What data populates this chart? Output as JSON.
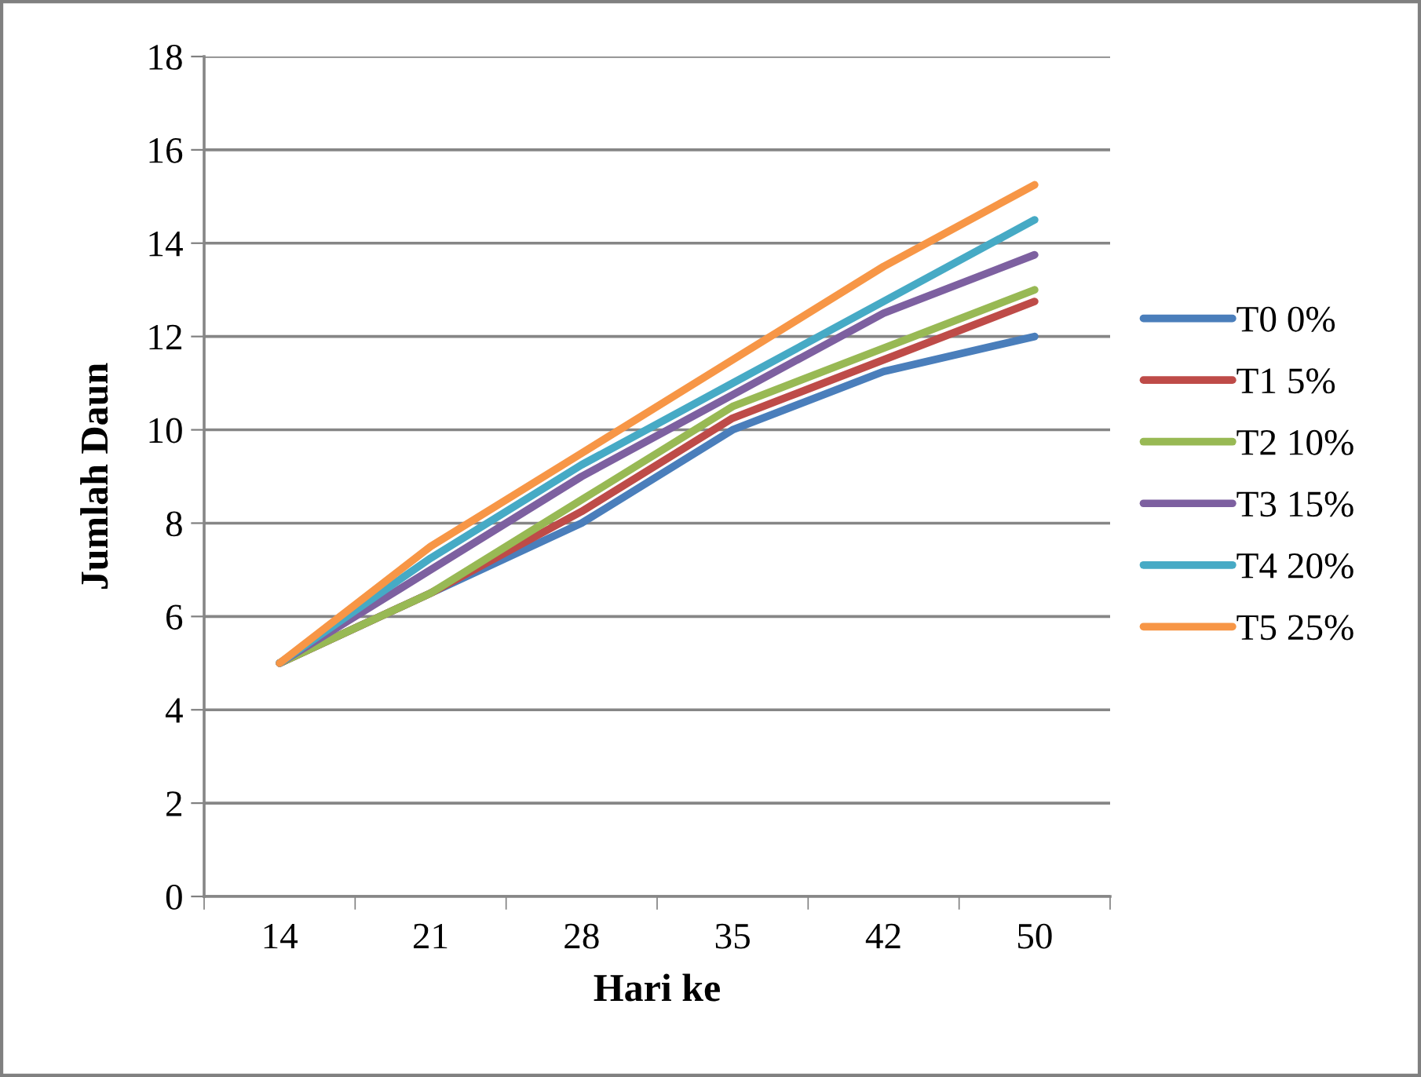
{
  "chart_data": {
    "type": "line",
    "xlabel": "Hari ke",
    "ylabel": "Jumlah Daun",
    "categories": [
      "14",
      "21",
      "28",
      "35",
      "42",
      "50"
    ],
    "series": [
      {
        "name": "T0 0%",
        "color": "#4a7ebb",
        "values": [
          5,
          6.5,
          8,
          10,
          11.25,
          12
        ]
      },
      {
        "name": "T1 5%",
        "color": "#be4b48",
        "values": [
          5,
          6.5,
          8.25,
          10.25,
          11.5,
          12.75
        ]
      },
      {
        "name": "T2 10%",
        "color": "#98b954",
        "values": [
          5,
          6.5,
          8.5,
          10.5,
          11.75,
          13
        ]
      },
      {
        "name": "T3 15%",
        "color": "#7d60a0",
        "values": [
          5,
          7,
          9,
          10.75,
          12.5,
          13.75
        ]
      },
      {
        "name": "T4 20%",
        "color": "#46aac5",
        "values": [
          5,
          7.25,
          9.25,
          11,
          12.75,
          14.5
        ]
      },
      {
        "name": "T5 25%",
        "color": "#f79646",
        "values": [
          5,
          7.5,
          9.5,
          11.5,
          13.5,
          15.25
        ]
      }
    ],
    "ylim": [
      0,
      18
    ],
    "yticks": [
      0,
      2,
      4,
      6,
      8,
      10,
      12,
      14,
      16,
      18
    ],
    "grid": "y",
    "legend": "right",
    "marker": "none",
    "line_style": "solid"
  }
}
